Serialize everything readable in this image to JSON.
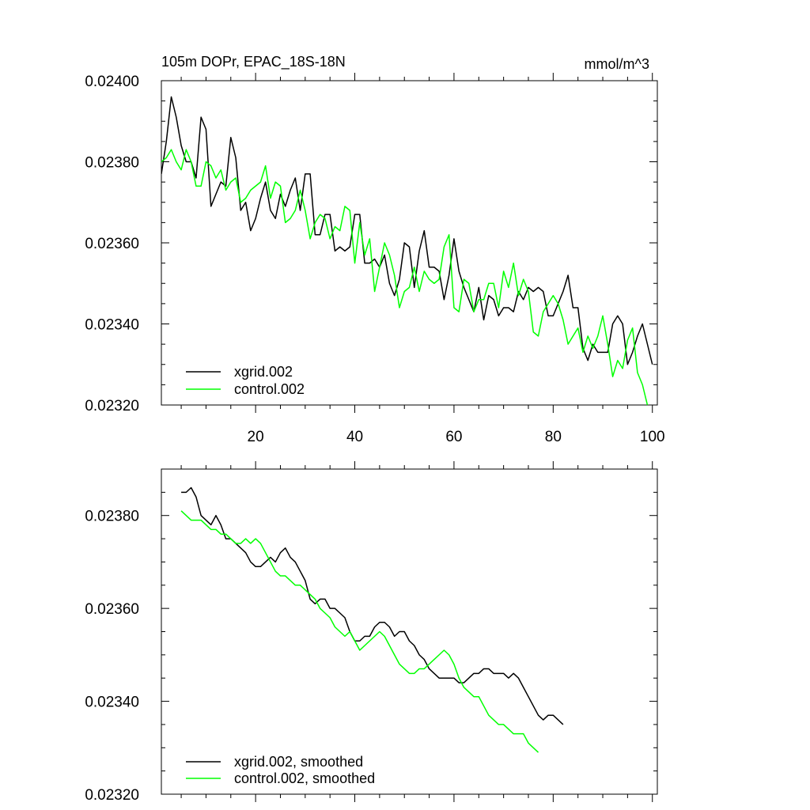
{
  "chart_data": [
    {
      "type": "line",
      "title": "105m DOPr, EPAC_18S-18N",
      "units": "mmol/m^3",
      "xlabel": "",
      "ylabel": "",
      "xlim": [
        1,
        101
      ],
      "ylim": [
        0.0232,
        0.024
      ],
      "x_ticks": [
        20,
        40,
        60,
        80,
        100
      ],
      "y_ticks": [
        0.0232,
        0.0234,
        0.0236,
        0.0238,
        0.024
      ],
      "y_tick_labels": [
        "0.02320",
        "0.02340",
        "0.02360",
        "0.02380",
        "0.02400"
      ],
      "legend_position": "bottom-left",
      "series": [
        {
          "name": "xgrid.002",
          "color": "#000000",
          "x_start": 1,
          "values": [
            0.02377,
            0.02385,
            0.02396,
            0.02391,
            0.02384,
            0.0238,
            0.0238,
            0.02376,
            0.02391,
            0.02388,
            0.02369,
            0.02372,
            0.02375,
            0.02374,
            0.02386,
            0.02381,
            0.02368,
            0.0237,
            0.02363,
            0.02366,
            0.02371,
            0.02375,
            0.02368,
            0.02366,
            0.02372,
            0.02369,
            0.02373,
            0.02376,
            0.02368,
            0.02377,
            0.02377,
            0.02362,
            0.02362,
            0.02367,
            0.02367,
            0.02358,
            0.02359,
            0.02358,
            0.02359,
            0.02367,
            0.02367,
            0.02355,
            0.02355,
            0.02356,
            0.02354,
            0.02357,
            0.0235,
            0.02347,
            0.02351,
            0.0236,
            0.02359,
            0.02349,
            0.02358,
            0.02363,
            0.02354,
            0.02354,
            0.02353,
            0.02346,
            0.02352,
            0.02361,
            0.02353,
            0.02349,
            0.02346,
            0.02343,
            0.02349,
            0.02341,
            0.02347,
            0.02346,
            0.02342,
            0.02344,
            0.02344,
            0.02343,
            0.02348,
            0.02346,
            0.02349,
            0.02348,
            0.02349,
            0.02348,
            0.02342,
            0.02342,
            0.02345,
            0.02348,
            0.02352,
            0.02344,
            0.02344,
            0.02334,
            0.02331,
            0.02335,
            0.02333,
            0.02333,
            0.02333,
            0.0234,
            0.02342,
            0.0234,
            0.0233,
            0.02333,
            0.02337,
            0.0234,
            0.02335,
            0.0233
          ]
        },
        {
          "name": "control.002",
          "color": "#00ff00",
          "x_start": 1,
          "values": [
            0.0238,
            0.02381,
            0.02383,
            0.0238,
            0.02378,
            0.02383,
            0.0238,
            0.02374,
            0.02374,
            0.0238,
            0.02379,
            0.02376,
            0.02378,
            0.02373,
            0.02375,
            0.02376,
            0.0237,
            0.02371,
            0.02373,
            0.02374,
            0.02375,
            0.02379,
            0.02371,
            0.02375,
            0.02374,
            0.02365,
            0.02366,
            0.02368,
            0.02373,
            0.02368,
            0.02361,
            0.02365,
            0.02367,
            0.02366,
            0.02361,
            0.02364,
            0.02363,
            0.02369,
            0.02368,
            0.02355,
            0.02365,
            0.02357,
            0.02361,
            0.02348,
            0.02354,
            0.0236,
            0.02357,
            0.02352,
            0.02344,
            0.02348,
            0.02349,
            0.02354,
            0.02348,
            0.02353,
            0.02351,
            0.0235,
            0.02351,
            0.02359,
            0.02362,
            0.02344,
            0.02343,
            0.02351,
            0.0235,
            0.02343,
            0.02346,
            0.02346,
            0.0235,
            0.0235,
            0.02344,
            0.02353,
            0.02349,
            0.02355,
            0.02347,
            0.02351,
            0.02348,
            0.02338,
            0.02337,
            0.02343,
            0.02345,
            0.02347,
            0.02345,
            0.02341,
            0.02335,
            0.02337,
            0.02339,
            0.02333,
            0.02337,
            0.02334,
            0.02337,
            0.02342,
            0.02335,
            0.02327,
            0.02331,
            0.02329,
            0.02336,
            0.02339,
            0.02328,
            0.02325,
            0.0232
          ]
        }
      ]
    },
    {
      "type": "line",
      "title": "",
      "xlabel": "",
      "ylabel": "",
      "xlim": [
        1,
        101
      ],
      "ylim": [
        0.0232,
        0.0239
      ],
      "x_ticks": [
        20,
        40,
        60,
        80,
        100
      ],
      "y_ticks": [
        0.0232,
        0.0234,
        0.0236,
        0.0238
      ],
      "y_tick_labels": [
        "0.02320",
        "0.02340",
        "0.02360",
        "0.02380"
      ],
      "legend_position": "bottom-left",
      "series": [
        {
          "name": "xgrid.002, smoothed",
          "color": "#000000",
          "x_start": 5,
          "values": [
            0.02385,
            0.02385,
            0.02386,
            0.02384,
            0.0238,
            0.02379,
            0.02378,
            0.0238,
            0.02378,
            0.02375,
            0.02375,
            0.02374,
            0.02373,
            0.02372,
            0.0237,
            0.02369,
            0.02369,
            0.0237,
            0.02371,
            0.0237,
            0.02372,
            0.02373,
            0.02371,
            0.0237,
            0.02368,
            0.02366,
            0.02362,
            0.02361,
            0.02362,
            0.02362,
            0.0236,
            0.0236,
            0.02359,
            0.02358,
            0.02355,
            0.02353,
            0.02353,
            0.02354,
            0.02354,
            0.02356,
            0.02357,
            0.02357,
            0.02356,
            0.02354,
            0.02355,
            0.02355,
            0.02353,
            0.02352,
            0.0235,
            0.02349,
            0.02347,
            0.02346,
            0.02345,
            0.02345,
            0.02345,
            0.02345,
            0.02344,
            0.02344,
            0.02345,
            0.02346,
            0.02346,
            0.02347,
            0.02347,
            0.02346,
            0.02346,
            0.02346,
            0.02345,
            0.02346,
            0.02345,
            0.02343,
            0.02341,
            0.02339,
            0.02337,
            0.02336,
            0.02337,
            0.02337,
            0.02336,
            0.02335
          ]
        },
        {
          "name": "control.002, smoothed",
          "color": "#00ff00",
          "x_start": 5,
          "values": [
            0.02381,
            0.0238,
            0.02379,
            0.02379,
            0.02379,
            0.02378,
            0.02377,
            0.02377,
            0.02376,
            0.02376,
            0.02375,
            0.02374,
            0.02374,
            0.02375,
            0.02374,
            0.02375,
            0.02374,
            0.02372,
            0.0237,
            0.02368,
            0.02367,
            0.02367,
            0.02366,
            0.02365,
            0.02365,
            0.02364,
            0.02363,
            0.02362,
            0.0236,
            0.02359,
            0.02358,
            0.02356,
            0.02355,
            0.02354,
            0.02355,
            0.02353,
            0.02351,
            0.02352,
            0.02353,
            0.02354,
            0.02355,
            0.02354,
            0.02352,
            0.0235,
            0.02348,
            0.02347,
            0.02346,
            0.02346,
            0.02347,
            0.02347,
            0.02348,
            0.02349,
            0.0235,
            0.02351,
            0.0235,
            0.02348,
            0.02345,
            0.02343,
            0.02342,
            0.02341,
            0.02341,
            0.02339,
            0.02337,
            0.02336,
            0.02335,
            0.02335,
            0.02334,
            0.02333,
            0.02333,
            0.02333,
            0.02331,
            0.0233,
            0.02329
          ]
        }
      ]
    }
  ]
}
